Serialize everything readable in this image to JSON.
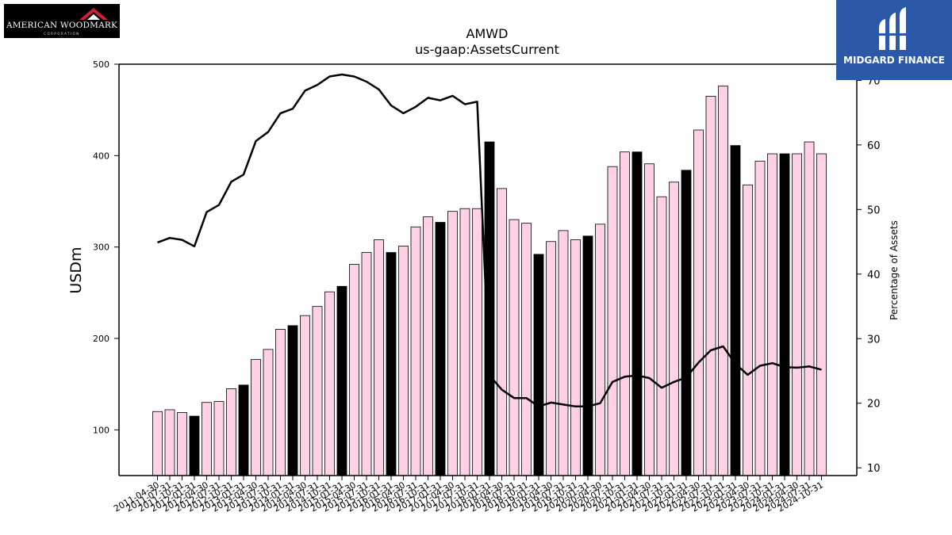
{
  "logos": {
    "left_text": "AMERICAN WOODMARK",
    "left_subtext": "CORPORATION",
    "right_text": "MIDGARD FINANCE"
  },
  "chart_data": {
    "type": "bar",
    "title": "AMWD",
    "subtitle": "us-gaap:AssetsCurrent",
    "ylabel": "USDm",
    "y2label": "Percentage of Assets",
    "ylim": [
      50,
      500
    ],
    "y2lim": [
      8.8,
      72.5
    ],
    "yticks": [
      100,
      200,
      300,
      400,
      500
    ],
    "y2ticks": [
      10,
      20,
      30,
      40,
      50,
      60,
      70
    ],
    "categories": [
      "2011-04-30",
      "2011-07-31",
      "2011-10-31",
      "2012-01-31",
      "2012-04-30",
      "2012-07-31",
      "2012-10-31",
      "2013-01-31",
      "2013-04-30",
      "2013-07-31",
      "2013-10-31",
      "2014-01-31",
      "2014-04-30",
      "2014-07-31",
      "2014-10-31",
      "2015-01-31",
      "2015-04-30",
      "2015-07-31",
      "2015-10-31",
      "2016-01-31",
      "2016-04-30",
      "2016-07-31",
      "2016-10-31",
      "2017-01-31",
      "2017-04-30",
      "2017-07-31",
      "2017-10-31",
      "2018-01-31",
      "2018-04-30",
      "2018-07-31",
      "2018-10-31",
      "2019-01-31",
      "2019-04-30",
      "2019-07-31",
      "2019-10-31",
      "2020-01-31",
      "2020-04-30",
      "2020-07-31",
      "2020-10-31",
      "2021-01-31",
      "2021-04-30",
      "2021-07-31",
      "2021-10-31",
      "2022-01-31",
      "2022-04-30",
      "2022-07-31",
      "2022-10-31",
      "2023-01-31",
      "2023-04-30",
      "2023-07-31",
      "2023-10-31",
      "2024-01-31",
      "2024-04-30",
      "2024-07-31",
      "2024-10-31"
    ],
    "series": [
      {
        "type": "bar",
        "values": [
          120,
          122,
          119,
          115,
          130,
          131,
          145,
          149,
          177,
          188,
          210,
          214,
          225,
          235,
          251,
          257,
          281,
          294,
          308,
          294,
          301,
          322,
          333,
          327,
          339,
          342,
          342,
          415,
          364,
          330,
          326,
          292,
          306,
          318,
          308,
          312,
          325,
          388,
          404,
          404,
          391,
          355,
          371,
          384,
          428,
          465,
          476,
          411,
          368,
          394,
          402,
          402,
          402,
          415,
          402
        ],
        "highlight": [
          3,
          7,
          11,
          15,
          19,
          23,
          27,
          31,
          35,
          39,
          43,
          47,
          51
        ],
        "colors": {
          "normal": "#ffd1e6",
          "highlight": "#000000",
          "edge": "#000000"
        }
      },
      {
        "type": "line",
        "values": [
          44.9,
          45.6,
          45.3,
          44.3,
          49.6,
          50.7,
          54.3,
          55.4,
          60.6,
          62.0,
          64.9,
          65.6,
          68.4,
          69.3,
          70.6,
          70.9,
          70.6,
          69.8,
          68.6,
          66.1,
          64.9,
          65.9,
          67.3,
          66.9,
          67.6,
          66.3,
          66.7,
          24.3,
          22.1,
          20.8,
          20.8,
          19.5,
          20.1,
          19.8,
          19.5,
          19.5,
          20.0,
          23.3,
          24.1,
          24.3,
          23.9,
          22.4,
          23.3,
          24.0,
          26.3,
          28.2,
          28.8,
          26.1,
          24.4,
          25.8,
          26.2,
          25.6,
          25.5,
          25.7,
          25.2
        ],
        "color": "#000000"
      }
    ],
    "grid": false
  }
}
